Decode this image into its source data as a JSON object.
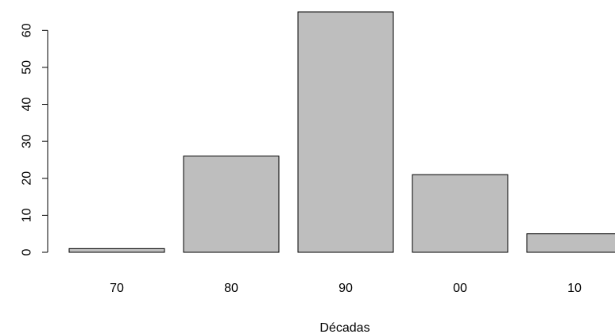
{
  "chart_data": {
    "type": "bar",
    "categories": [
      "70",
      "80",
      "90",
      "00",
      "10"
    ],
    "values": [
      1,
      26,
      65,
      21,
      5
    ],
    "title": "",
    "xlabel": "Décadas",
    "ylabel": "",
    "ylim": [
      0,
      65
    ],
    "yticks": [
      "0",
      "10",
      "20",
      "30",
      "40",
      "50",
      "60"
    ],
    "bar_color": "#bebebe",
    "bar_border_color": "#000000",
    "grid": false,
    "legend": "none"
  }
}
